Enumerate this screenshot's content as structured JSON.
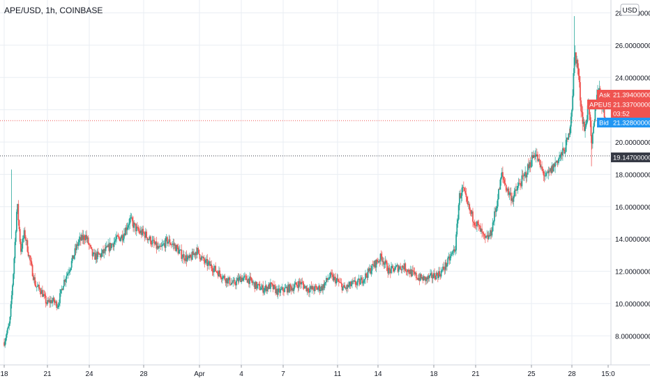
{
  "header": {
    "symbol_line": "APE/USD, 1h, COINBASE"
  },
  "currency_button": "USD",
  "colors": {
    "up": "#26a69a",
    "down": "#ef5350",
    "grid": "#e9eef3",
    "ask_bg": "#ef5350",
    "bid_bg": "#2196f3",
    "marker_bg": "#363a45",
    "axis_text": "#131722"
  },
  "chart_data": {
    "type": "candlestick",
    "title": "",
    "xlabel": "",
    "ylabel": "",
    "ylim": [
      6.2,
      28.8
    ],
    "grid": true,
    "x_ticks": [
      "18",
      "21",
      "24",
      "28",
      "Apr",
      "4",
      "7",
      "11",
      "14",
      "18",
      "21",
      "25",
      "28",
      "15:0"
    ],
    "y_ticks": [
      "8.00000000",
      "10.00000000",
      "12.00000000",
      "14.00000000",
      "16.00000000",
      "18.00000000",
      "20.00000000",
      "22.00000000",
      "24.00000000",
      "26.00000000",
      "28.00000000"
    ],
    "price_path": [
      [
        0,
        7.6
      ],
      [
        0.3,
        8.8
      ],
      [
        0.5,
        12.0
      ],
      [
        0.7,
        16.2
      ],
      [
        0.9,
        13.3
      ],
      [
        1.1,
        14.4
      ],
      [
        1.4,
        12.6
      ],
      [
        1.7,
        11.1
      ],
      [
        2.0,
        10.8
      ],
      [
        2.3,
        10.0
      ],
      [
        2.6,
        10.2
      ],
      [
        2.9,
        9.9
      ],
      [
        3.2,
        11.3
      ],
      [
        3.6,
        12.4
      ],
      [
        4.0,
        13.8
      ],
      [
        4.4,
        14.2
      ],
      [
        4.8,
        12.9
      ],
      [
        5.2,
        13.0
      ],
      [
        5.6,
        13.4
      ],
      [
        6.0,
        13.9
      ],
      [
        6.4,
        14.2
      ],
      [
        6.8,
        15.2
      ],
      [
        7.2,
        14.5
      ],
      [
        7.6,
        14.3
      ],
      [
        8.0,
        13.8
      ],
      [
        8.4,
        13.3
      ],
      [
        8.8,
        13.9
      ],
      [
        9.2,
        13.6
      ],
      [
        9.6,
        13.0
      ],
      [
        10.0,
        12.7
      ],
      [
        10.4,
        13.3
      ],
      [
        10.8,
        12.6
      ],
      [
        11.2,
        12.3
      ],
      [
        11.6,
        11.9
      ],
      [
        12.0,
        11.5
      ],
      [
        12.4,
        11.2
      ],
      [
        12.8,
        11.6
      ],
      [
        13.2,
        11.5
      ],
      [
        13.6,
        11.1
      ],
      [
        14.0,
        10.9
      ],
      [
        14.4,
        11.1
      ],
      [
        14.8,
        10.7
      ],
      [
        15.2,
        10.9
      ],
      [
        15.6,
        11.0
      ],
      [
        16.0,
        11.3
      ],
      [
        16.4,
        10.9
      ],
      [
        16.8,
        10.9
      ],
      [
        17.2,
        11.0
      ],
      [
        17.6,
        11.7
      ],
      [
        18.0,
        11.4
      ],
      [
        18.4,
        10.9
      ],
      [
        18.8,
        11.2
      ],
      [
        19.2,
        11.3
      ],
      [
        19.6,
        11.8
      ],
      [
        20.0,
        12.4
      ],
      [
        20.4,
        12.9
      ],
      [
        20.8,
        12.0
      ],
      [
        21.2,
        12.2
      ],
      [
        21.6,
        12.3
      ],
      [
        22.0,
        11.9
      ],
      [
        22.4,
        11.6
      ],
      [
        22.8,
        11.5
      ],
      [
        23.2,
        11.7
      ],
      [
        23.6,
        11.9
      ],
      [
        24.0,
        12.6
      ],
      [
        24.4,
        13.5
      ],
      [
        24.6,
        16.6
      ],
      [
        24.8,
        17.1
      ],
      [
        25.0,
        16.2
      ],
      [
        25.3,
        15.4
      ],
      [
        25.7,
        14.6
      ],
      [
        26.0,
        13.9
      ],
      [
        26.3,
        14.3
      ],
      [
        26.6,
        16.0
      ],
      [
        26.9,
        18.0
      ],
      [
        27.2,
        17.0
      ],
      [
        27.5,
        16.5
      ],
      [
        27.8,
        17.3
      ],
      [
        28.1,
        17.8
      ],
      [
        28.4,
        18.6
      ],
      [
        28.7,
        19.4
      ],
      [
        29.0,
        18.4
      ],
      [
        29.3,
        17.8
      ],
      [
        29.6,
        18.3
      ],
      [
        29.9,
        18.9
      ],
      [
        30.2,
        19.3
      ],
      [
        30.5,
        20.2
      ],
      [
        30.7,
        22.3
      ],
      [
        30.85,
        25.6
      ],
      [
        31.0,
        24.7
      ],
      [
        31.2,
        22.0
      ],
      [
        31.4,
        20.6
      ],
      [
        31.6,
        22.7
      ],
      [
        31.75,
        19.5
      ],
      [
        31.9,
        21.2
      ],
      [
        32.1,
        23.6
      ],
      [
        32.3,
        22.4
      ],
      [
        32.5,
        21.4
      ]
    ],
    "x_domain": [
      0,
      32.5
    ],
    "current": {
      "ask_label": "Ask",
      "ask": "21.39400000",
      "symbol_label": "APEUSD",
      "last": "21.33700000",
      "countdown": "03:52",
      "bid_label": "Bid",
      "bid": "21.32800000",
      "marker": "19.14700000"
    },
    "levels": {
      "ask": 21.394,
      "last": 21.337,
      "bid": 21.328,
      "marker": 19.147
    }
  }
}
